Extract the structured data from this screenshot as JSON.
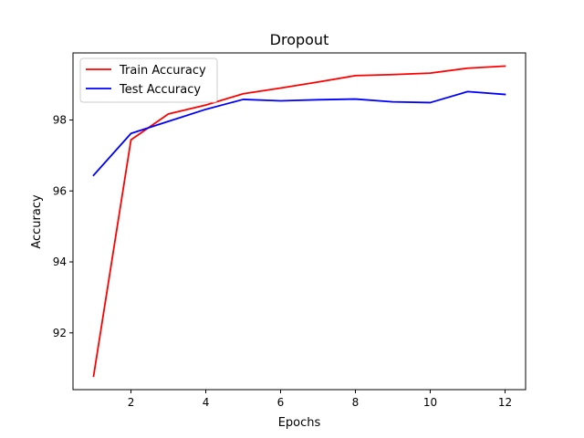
{
  "chart_data": {
    "type": "line",
    "title": "Dropout",
    "xlabel": "Epochs",
    "ylabel": "Accuracy",
    "x": [
      1,
      2,
      3,
      4,
      5,
      6,
      7,
      8,
      9,
      10,
      11,
      12
    ],
    "series": [
      {
        "name": "Train Accuracy",
        "color": "#ff0000",
        "values": [
          90.78,
          97.44,
          98.17,
          98.42,
          98.74,
          98.9,
          99.07,
          99.25,
          99.28,
          99.32,
          99.46,
          99.52
        ]
      },
      {
        "name": "Test Accuracy",
        "color": "#0000ff",
        "values": [
          96.44,
          97.62,
          97.96,
          98.3,
          98.58,
          98.54,
          98.57,
          98.59,
          98.51,
          98.49,
          98.8,
          98.72
        ]
      }
    ],
    "xlim": [
      0.45,
      12.55
    ],
    "ylim": [
      90.4,
      99.89
    ],
    "xticks": [
      2,
      4,
      6,
      8,
      10,
      12
    ],
    "yticks": [
      92,
      94,
      96,
      98
    ],
    "grid": false,
    "legend": "top-left"
  }
}
